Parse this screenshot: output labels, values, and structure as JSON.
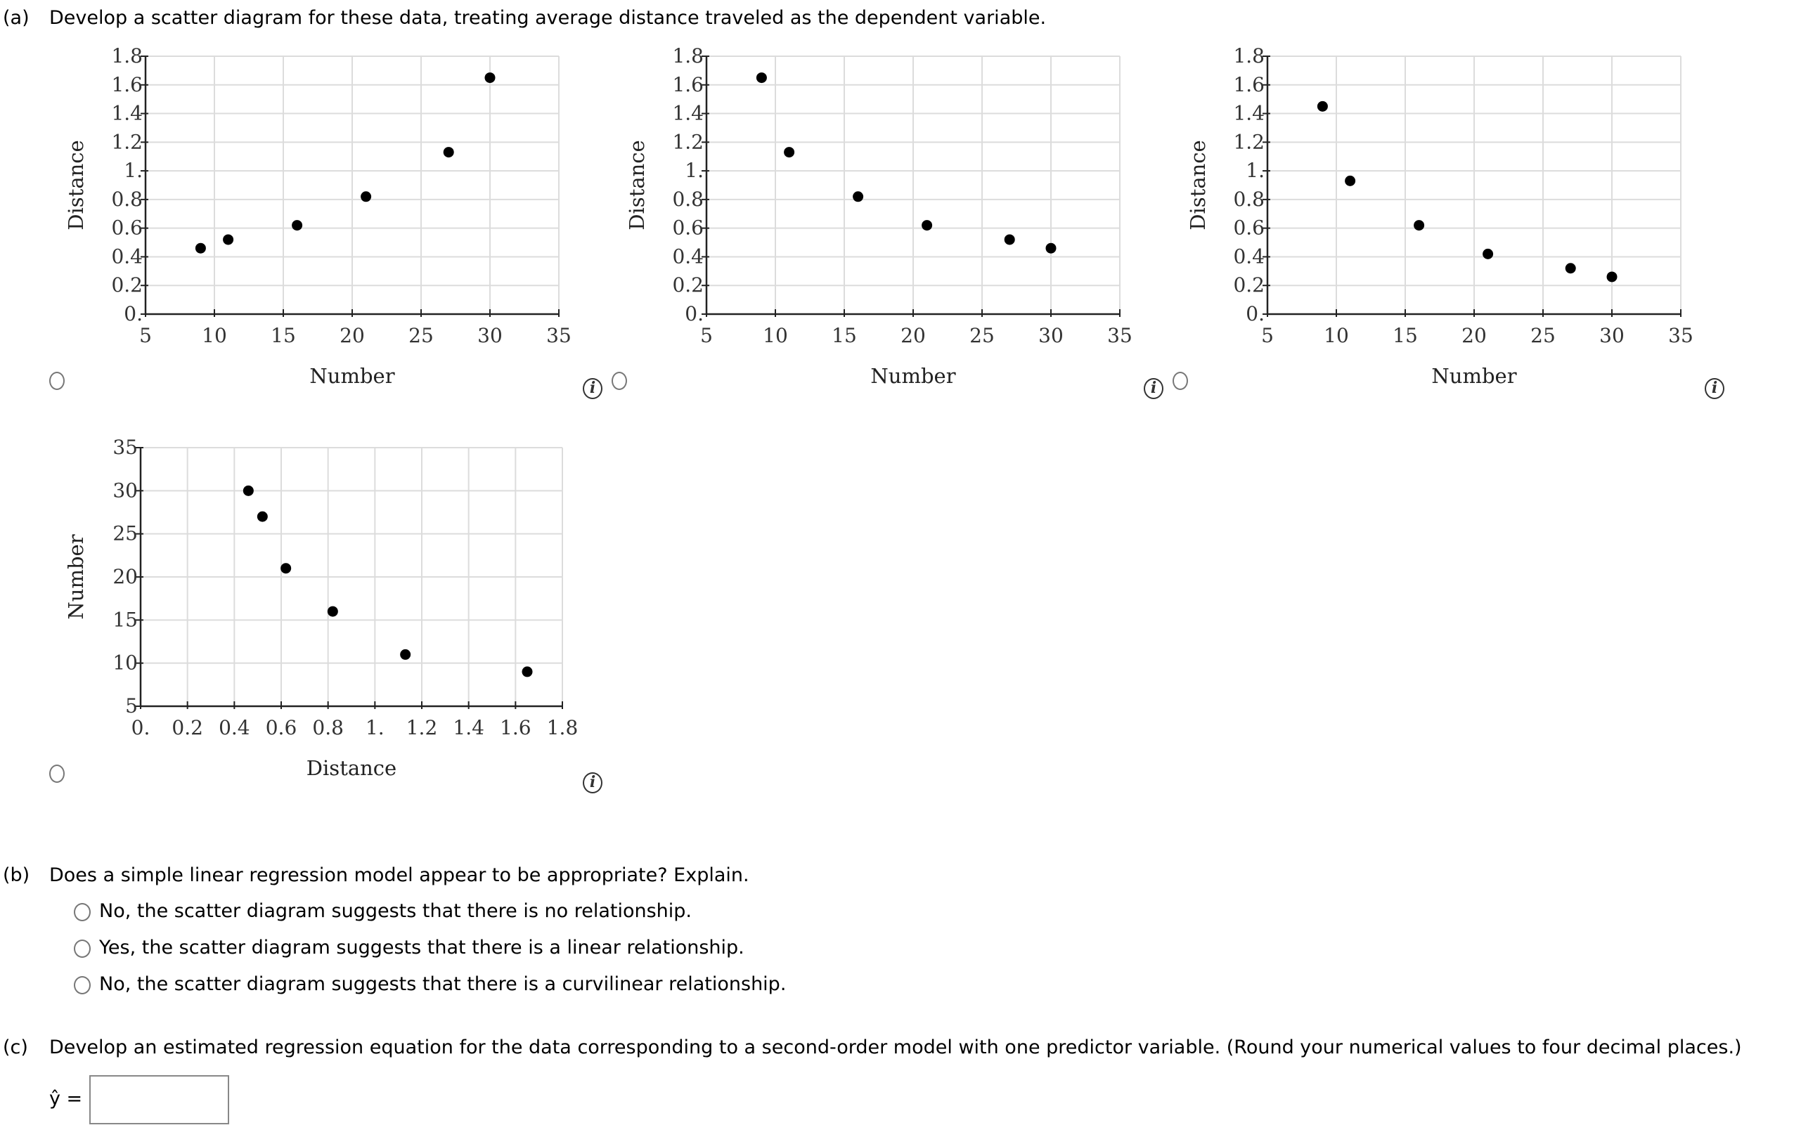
{
  "part_a": {
    "label": "(a)",
    "prompt": "Develop a scatter diagram for these data, treating average distance traveled as the dependent variable."
  },
  "part_b": {
    "label": "(b)",
    "prompt": "Does a simple linear regression model appear to be appropriate? Explain.",
    "options": [
      "No, the scatter diagram suggests that there is no relationship.",
      "Yes, the scatter diagram suggests that there is a linear relationship.",
      "No, the scatter diagram suggests that there is a curvilinear relationship."
    ]
  },
  "part_c": {
    "label": "(c)",
    "prompt": "Develop an estimated regression equation for the data corresponding to a second-order model with one predictor variable. (Round your numerical values to four decimal places.)",
    "yhat_label": "ŷ =",
    "answer_value": ""
  },
  "info_icon_glyph": "i",
  "chart_data": [
    {
      "type": "scatter",
      "title": "",
      "xlabel": "Number",
      "ylabel": "Distance",
      "xlim": [
        5,
        35
      ],
      "ylim": [
        0,
        1.8
      ],
      "xticks": [
        "5",
        "10",
        "15",
        "20",
        "25",
        "30",
        "35"
      ],
      "yticks": [
        "0.",
        "0.2",
        "0.4",
        "0.6",
        "0.8",
        "1.",
        "1.2",
        "1.4",
        "1.6",
        "1.8"
      ],
      "grid": true,
      "x": [
        9,
        11,
        16,
        21,
        27,
        30
      ],
      "y": [
        0.46,
        0.52,
        0.62,
        0.82,
        1.13,
        1.65
      ]
    },
    {
      "type": "scatter",
      "title": "",
      "xlabel": "Number",
      "ylabel": "Distance",
      "xlim": [
        5,
        35
      ],
      "ylim": [
        0,
        1.8
      ],
      "xticks": [
        "5",
        "10",
        "15",
        "20",
        "25",
        "30",
        "35"
      ],
      "yticks": [
        "0.",
        "0.2",
        "0.4",
        "0.6",
        "0.8",
        "1.",
        "1.2",
        "1.4",
        "1.6",
        "1.8"
      ],
      "grid": true,
      "x": [
        9,
        11,
        16,
        21,
        27,
        30
      ],
      "y": [
        1.65,
        1.13,
        0.82,
        0.62,
        0.52,
        0.46
      ]
    },
    {
      "type": "scatter",
      "title": "",
      "xlabel": "Number",
      "ylabel": "Distance",
      "xlim": [
        5,
        35
      ],
      "ylim": [
        0,
        1.8
      ],
      "xticks": [
        "5",
        "10",
        "15",
        "20",
        "25",
        "30",
        "35"
      ],
      "yticks": [
        "0.",
        "0.2",
        "0.4",
        "0.6",
        "0.8",
        "1.",
        "1.2",
        "1.4",
        "1.6",
        "1.8"
      ],
      "grid": true,
      "x": [
        9,
        11,
        16,
        21,
        27,
        30
      ],
      "y": [
        1.45,
        0.93,
        0.62,
        0.42,
        0.32,
        0.26
      ]
    },
    {
      "type": "scatter",
      "title": "",
      "xlabel": "Distance",
      "ylabel": "Number",
      "xlim": [
        0,
        1.8
      ],
      "ylim": [
        5,
        35
      ],
      "xticks": [
        "0.",
        "0.2",
        "0.4",
        "0.6",
        "0.8",
        "1.",
        "1.2",
        "1.4",
        "1.6",
        "1.8"
      ],
      "yticks": [
        "5",
        "10",
        "15",
        "20",
        "25",
        "30",
        "35"
      ],
      "grid": true,
      "x": [
        0.46,
        0.52,
        0.62,
        0.82,
        1.13,
        1.65
      ],
      "y": [
        30,
        27,
        21,
        16,
        11,
        9
      ]
    }
  ]
}
